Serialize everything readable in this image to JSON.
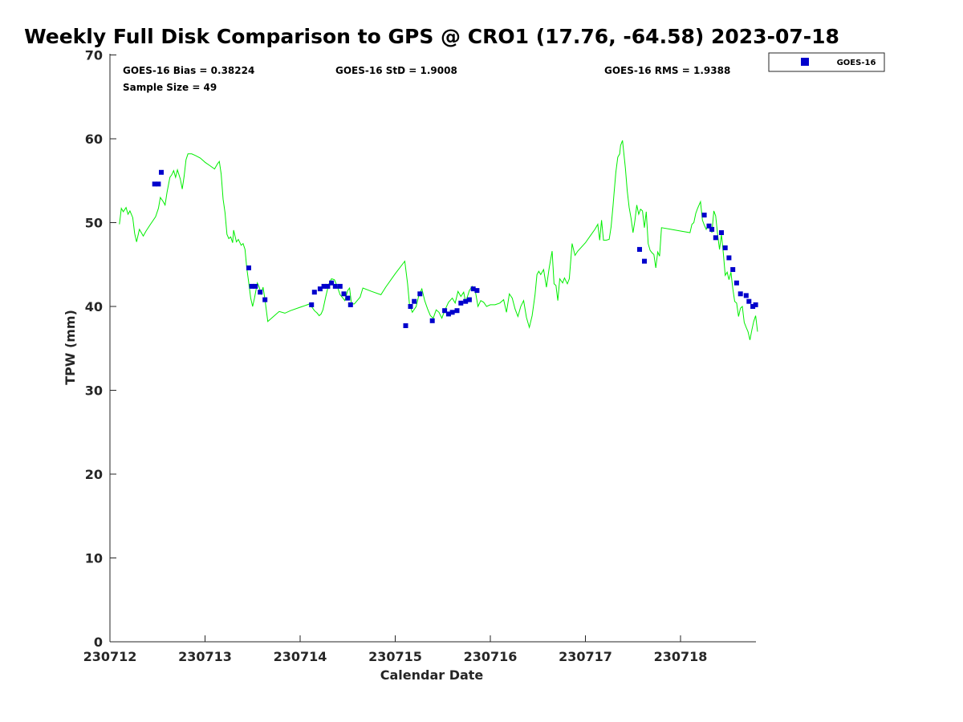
{
  "chart_data": {
    "type": "scatter",
    "title": "Weekly Full Disk Comparison to GPS @ CRO1 (17.76, -64.58) 2023-07-18",
    "xlabel": "Calendar Date",
    "ylabel": "TPW (mm)",
    "xlim": [
      0,
      6.8
    ],
    "ylim": [
      0,
      70
    ],
    "x_ticks": [
      {
        "value": 0,
        "label": "230712"
      },
      {
        "value": 1,
        "label": "230713"
      },
      {
        "value": 2,
        "label": "230714"
      },
      {
        "value": 3,
        "label": "230715"
      },
      {
        "value": 4,
        "label": "230716"
      },
      {
        "value": 5,
        "label": "230717"
      },
      {
        "value": 6,
        "label": "230718"
      }
    ],
    "y_ticks": [
      {
        "value": 0,
        "label": "0"
      },
      {
        "value": 10,
        "label": "10"
      },
      {
        "value": 20,
        "label": "20"
      },
      {
        "value": 30,
        "label": "30"
      },
      {
        "value": 40,
        "label": "40"
      },
      {
        "value": 50,
        "label": "50"
      },
      {
        "value": 60,
        "label": "60"
      },
      {
        "value": 70,
        "label": "70"
      }
    ],
    "grid": false,
    "legend": {
      "position": "outside-top-right",
      "entries": [
        "GOES-16"
      ]
    },
    "stats": {
      "bias": "GOES-16 Bias = 0.38224",
      "std": "GOES-16 StD = 1.9008",
      "rms": "GOES-16 RMS = 1.9388",
      "sample": "Sample Size = 49"
    },
    "series": [
      {
        "name": "GOES-16",
        "kind": "scatter",
        "color": "#0000cc",
        "points": [
          [
            0.47,
            54.6
          ],
          [
            0.51,
            54.6
          ],
          [
            0.54,
            56.0
          ],
          [
            1.46,
            44.6
          ],
          [
            1.49,
            42.4
          ],
          [
            1.53,
            42.4
          ],
          [
            1.58,
            41.7
          ],
          [
            1.63,
            40.8
          ],
          [
            2.12,
            40.2
          ],
          [
            2.15,
            41.7
          ],
          [
            2.21,
            42.1
          ],
          [
            2.25,
            42.4
          ],
          [
            2.29,
            42.4
          ],
          [
            2.33,
            42.8
          ],
          [
            2.37,
            42.4
          ],
          [
            2.42,
            42.4
          ],
          [
            2.46,
            41.5
          ],
          [
            2.5,
            41.0
          ],
          [
            2.53,
            40.2
          ],
          [
            3.11,
            37.7
          ],
          [
            3.16,
            40.0
          ],
          [
            3.2,
            40.6
          ],
          [
            3.26,
            41.5
          ],
          [
            3.39,
            38.3
          ],
          [
            3.52,
            39.5
          ],
          [
            3.56,
            39.1
          ],
          [
            3.6,
            39.3
          ],
          [
            3.65,
            39.5
          ],
          [
            3.69,
            40.4
          ],
          [
            3.74,
            40.6
          ],
          [
            3.78,
            40.8
          ],
          [
            3.82,
            42.1
          ],
          [
            3.86,
            41.9
          ],
          [
            5.57,
            46.8
          ],
          [
            5.62,
            45.4
          ],
          [
            6.25,
            50.9
          ],
          [
            6.3,
            49.6
          ],
          [
            6.33,
            49.2
          ],
          [
            6.37,
            48.2
          ],
          [
            6.43,
            48.8
          ],
          [
            6.47,
            47.0
          ],
          [
            6.51,
            45.8
          ],
          [
            6.55,
            44.4
          ],
          [
            6.59,
            42.8
          ],
          [
            6.63,
            41.5
          ],
          [
            6.69,
            41.3
          ],
          [
            6.72,
            40.6
          ],
          [
            6.76,
            40.0
          ],
          [
            6.79,
            40.2
          ]
        ]
      },
      {
        "name": "GPS",
        "kind": "line",
        "color": "#00ee00",
        "points": [
          [
            0.1,
            49.8
          ],
          [
            0.12,
            51.7
          ],
          [
            0.14,
            51.3
          ],
          [
            0.17,
            51.8
          ],
          [
            0.19,
            51.0
          ],
          [
            0.21,
            51.4
          ],
          [
            0.24,
            50.6
          ],
          [
            0.26,
            48.7
          ],
          [
            0.28,
            47.7
          ],
          [
            0.31,
            49.2
          ],
          [
            0.33,
            48.8
          ],
          [
            0.35,
            48.4
          ],
          [
            0.38,
            49.0
          ],
          [
            0.42,
            49.7
          ],
          [
            0.48,
            50.7
          ],
          [
            0.51,
            51.7
          ],
          [
            0.53,
            53.0
          ],
          [
            0.56,
            52.5
          ],
          [
            0.58,
            52.1
          ],
          [
            0.6,
            53.6
          ],
          [
            0.63,
            55.4
          ],
          [
            0.65,
            55.7
          ],
          [
            0.67,
            56.2
          ],
          [
            0.69,
            55.4
          ],
          [
            0.71,
            56.3
          ],
          [
            0.74,
            55.2
          ],
          [
            0.76,
            54.0
          ],
          [
            0.78,
            55.5
          ],
          [
            0.8,
            57.5
          ],
          [
            0.82,
            58.2
          ],
          [
            0.86,
            58.2
          ],
          [
            0.9,
            58.0
          ],
          [
            0.95,
            57.7
          ],
          [
            1.0,
            57.2
          ],
          [
            1.05,
            56.8
          ],
          [
            1.1,
            56.4
          ],
          [
            1.13,
            57.0
          ],
          [
            1.15,
            57.3
          ],
          [
            1.17,
            55.8
          ],
          [
            1.19,
            52.8
          ],
          [
            1.21,
            51.2
          ],
          [
            1.23,
            48.6
          ],
          [
            1.25,
            48.1
          ],
          [
            1.27,
            48.3
          ],
          [
            1.29,
            47.6
          ],
          [
            1.3,
            49.1
          ],
          [
            1.33,
            47.7
          ],
          [
            1.35,
            48.0
          ],
          [
            1.38,
            47.3
          ],
          [
            1.4,
            47.5
          ],
          [
            1.42,
            46.8
          ],
          [
            1.44,
            44.5
          ],
          [
            1.46,
            42.8
          ],
          [
            1.48,
            41.0
          ],
          [
            1.5,
            40.0
          ],
          [
            1.52,
            41.0
          ],
          [
            1.55,
            42.8
          ],
          [
            1.57,
            42.3
          ],
          [
            1.59,
            41.5
          ],
          [
            1.61,
            42.3
          ],
          [
            1.63,
            40.8
          ],
          [
            1.66,
            38.2
          ],
          [
            1.72,
            38.8
          ],
          [
            1.78,
            39.4
          ],
          [
            1.84,
            39.2
          ],
          [
            1.9,
            39.5
          ],
          [
            2.0,
            39.9
          ],
          [
            2.1,
            40.3
          ],
          [
            2.15,
            39.5
          ],
          [
            2.18,
            39.2
          ],
          [
            2.2,
            38.9
          ],
          [
            2.22,
            39.1
          ],
          [
            2.24,
            39.6
          ],
          [
            2.27,
            41.2
          ],
          [
            2.3,
            42.6
          ],
          [
            2.33,
            43.3
          ],
          [
            2.36,
            43.2
          ],
          [
            2.39,
            42.4
          ],
          [
            2.42,
            41.4
          ],
          [
            2.45,
            41.0
          ],
          [
            2.47,
            40.7
          ],
          [
            2.5,
            41.9
          ],
          [
            2.52,
            42.2
          ],
          [
            2.54,
            40.3
          ],
          [
            2.57,
            40.3
          ],
          [
            2.6,
            40.7
          ],
          [
            2.63,
            41.1
          ],
          [
            2.66,
            42.2
          ],
          [
            2.75,
            41.8
          ],
          [
            2.85,
            41.4
          ],
          [
            2.9,
            42.3
          ],
          [
            3.0,
            43.9
          ],
          [
            3.1,
            45.4
          ],
          [
            3.13,
            42.7
          ],
          [
            3.15,
            40.2
          ],
          [
            3.18,
            39.3
          ],
          [
            3.22,
            40.0
          ],
          [
            3.25,
            41.4
          ],
          [
            3.28,
            42.1
          ],
          [
            3.31,
            40.7
          ],
          [
            3.34,
            39.7
          ],
          [
            3.37,
            38.9
          ],
          [
            3.4,
            38.6
          ],
          [
            3.43,
            39.6
          ],
          [
            3.46,
            39.3
          ],
          [
            3.49,
            38.6
          ],
          [
            3.52,
            39.5
          ],
          [
            3.56,
            40.5
          ],
          [
            3.6,
            41.0
          ],
          [
            3.63,
            40.4
          ],
          [
            3.66,
            41.8
          ],
          [
            3.69,
            41.2
          ],
          [
            3.72,
            41.7
          ],
          [
            3.74,
            40.5
          ],
          [
            3.78,
            41.9
          ],
          [
            3.81,
            42.4
          ],
          [
            3.84,
            42.0
          ],
          [
            3.87,
            40.0
          ],
          [
            3.9,
            40.7
          ],
          [
            3.93,
            40.5
          ],
          [
            3.96,
            40.0
          ],
          [
            4.0,
            40.2
          ],
          [
            4.05,
            40.2
          ],
          [
            4.1,
            40.4
          ],
          [
            4.14,
            40.8
          ],
          [
            4.17,
            39.3
          ],
          [
            4.2,
            41.5
          ],
          [
            4.23,
            41.0
          ],
          [
            4.26,
            39.7
          ],
          [
            4.29,
            38.8
          ],
          [
            4.32,
            40.0
          ],
          [
            4.35,
            40.7
          ],
          [
            4.38,
            38.7
          ],
          [
            4.41,
            37.5
          ],
          [
            4.44,
            38.9
          ],
          [
            4.47,
            41.4
          ],
          [
            4.49,
            43.8
          ],
          [
            4.51,
            44.2
          ],
          [
            4.53,
            43.8
          ],
          [
            4.56,
            44.4
          ],
          [
            4.59,
            42.3
          ],
          [
            4.62,
            44.7
          ],
          [
            4.65,
            46.6
          ],
          [
            4.67,
            42.7
          ],
          [
            4.69,
            42.5
          ],
          [
            4.71,
            40.7
          ],
          [
            4.73,
            43.3
          ],
          [
            4.76,
            42.8
          ],
          [
            4.78,
            43.4
          ],
          [
            4.81,
            42.7
          ],
          [
            4.83,
            43.3
          ],
          [
            4.86,
            47.5
          ],
          [
            4.89,
            46.1
          ],
          [
            4.92,
            46.6
          ],
          [
            5.0,
            47.6
          ],
          [
            5.05,
            48.4
          ],
          [
            5.1,
            49.2
          ],
          [
            5.13,
            49.8
          ],
          [
            5.15,
            47.9
          ],
          [
            5.17,
            50.3
          ],
          [
            5.19,
            47.9
          ],
          [
            5.22,
            47.9
          ],
          [
            5.25,
            48.0
          ],
          [
            5.27,
            49.5
          ],
          [
            5.29,
            52.0
          ],
          [
            5.3,
            53.3
          ],
          [
            5.32,
            56.0
          ],
          [
            5.34,
            57.8
          ],
          [
            5.36,
            58.2
          ],
          [
            5.37,
            59.2
          ],
          [
            5.39,
            59.8
          ],
          [
            5.4,
            58.7
          ],
          [
            5.42,
            56.5
          ],
          [
            5.44,
            53.8
          ],
          [
            5.46,
            51.8
          ],
          [
            5.48,
            50.5
          ],
          [
            5.5,
            48.8
          ],
          [
            5.52,
            50.2
          ],
          [
            5.54,
            52.1
          ],
          [
            5.56,
            51.0
          ],
          [
            5.58,
            51.6
          ],
          [
            5.6,
            51.4
          ],
          [
            5.62,
            49.4
          ],
          [
            5.64,
            51.3
          ],
          [
            5.66,
            47.5
          ],
          [
            5.68,
            46.7
          ],
          [
            5.7,
            46.4
          ],
          [
            5.72,
            46.2
          ],
          [
            5.74,
            44.6
          ],
          [
            5.76,
            46.5
          ],
          [
            5.78,
            46.0
          ],
          [
            5.8,
            49.4
          ],
          [
            5.9,
            49.2
          ],
          [
            6.0,
            49.0
          ],
          [
            6.1,
            48.8
          ],
          [
            6.12,
            49.8
          ],
          [
            6.14,
            50.0
          ],
          [
            6.16,
            51.1
          ],
          [
            6.18,
            51.7
          ],
          [
            6.21,
            52.5
          ],
          [
            6.23,
            50.3
          ],
          [
            6.25,
            49.7
          ],
          [
            6.27,
            49.2
          ],
          [
            6.29,
            49.8
          ],
          [
            6.31,
            49.6
          ],
          [
            6.33,
            48.8
          ],
          [
            6.35,
            51.4
          ],
          [
            6.37,
            50.8
          ],
          [
            6.39,
            48.6
          ],
          [
            6.41,
            46.8
          ],
          [
            6.43,
            48.6
          ],
          [
            6.45,
            46.4
          ],
          [
            6.47,
            43.7
          ],
          [
            6.49,
            44.1
          ],
          [
            6.51,
            43.2
          ],
          [
            6.53,
            44.1
          ],
          [
            6.55,
            42.1
          ],
          [
            6.57,
            40.6
          ],
          [
            6.59,
            40.4
          ],
          [
            6.61,
            38.8
          ],
          [
            6.63,
            39.8
          ],
          [
            6.65,
            40.0
          ],
          [
            6.67,
            38.1
          ],
          [
            6.69,
            37.5
          ],
          [
            6.71,
            37.0
          ],
          [
            6.73,
            36.0
          ],
          [
            6.75,
            37.2
          ],
          [
            6.77,
            38.2
          ],
          [
            6.79,
            38.9
          ],
          [
            6.81,
            37.0
          ]
        ]
      }
    ]
  }
}
